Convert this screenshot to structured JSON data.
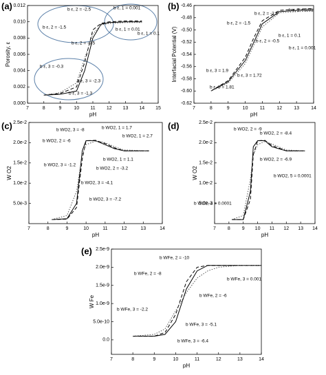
{
  "chart_data": [
    {
      "type": "line",
      "panel": "(a)",
      "xlabel": "pH",
      "ylabel": "Porosity, ε",
      "xlim": [
        7,
        15
      ],
      "xticks": [
        7,
        8,
        9,
        10,
        11,
        12,
        13,
        14,
        15
      ],
      "ylim": [
        0,
        0.012
      ],
      "yticks": [
        {
          "value": 0,
          "label": "0.000"
        },
        0.002,
        0.004,
        0.006,
        0.008,
        {
          "value": 0.01,
          "label": "0.010"
        },
        0.012
      ],
      "series": [
        {
          "style": "solid",
          "color": "#000000",
          "x": [
            8,
            9,
            10,
            10.5,
            11,
            11.5,
            12,
            13,
            14
          ],
          "values": [
            0.001,
            0.0011,
            0.0015,
            0.004,
            0.008,
            0.0097,
            0.0099,
            0.01,
            0.01
          ]
        },
        {
          "style": "dashed",
          "color": "#000000",
          "x": [
            8,
            9,
            10,
            10.5,
            11,
            11.5,
            12,
            13,
            14
          ],
          "values": [
            0.001,
            0.0012,
            0.002,
            0.005,
            0.009,
            0.0098,
            0.01,
            0.0101,
            0.0101
          ]
        },
        {
          "style": "dotted",
          "color": "#555555",
          "x": [
            8,
            9,
            10,
            10.5,
            11,
            11.5,
            12,
            13,
            14
          ],
          "values": [
            0.001,
            0.0013,
            0.0025,
            0.0055,
            0.0085,
            0.0096,
            0.0098,
            0.0099,
            0.0099
          ]
        }
      ],
      "annotations": [
        "b ε, 2 = -2.5",
        "b ε, 1 = 0.001",
        "b ε, 2 = -1.5",
        "b ε, 1 = 0.01",
        "b ε, 1 = 0.1",
        "b ε, 2 = -0.5",
        "b ε, 3 = -0.3",
        "b ε, 3 = -2.3",
        "b ε, 3 = -1.3"
      ]
    },
    {
      "type": "line",
      "panel": "(b)",
      "xlabel": "pH",
      "ylabel": "Interfacial Potential (V)",
      "xlim": [
        7,
        14
      ],
      "xticks": [
        7,
        8,
        9,
        10,
        11,
        12,
        13,
        14
      ],
      "ylim": [
        -0.62,
        -0.46
      ],
      "yticks": [
        -0.62,
        {
          "value": -0.6,
          "label": "-0.60"
        },
        -0.58,
        -0.56,
        -0.54,
        -0.52,
        {
          "value": -0.5,
          "label": "-0.50"
        },
        -0.48,
        -0.46
      ],
      "series": [
        {
          "style": "solid",
          "color": "#000000",
          "x": [
            8,
            9,
            10,
            10.5,
            11,
            12,
            13,
            14
          ],
          "values": [
            -0.6,
            -0.585,
            -0.55,
            -0.52,
            -0.49,
            -0.47,
            -0.468,
            -0.467
          ]
        },
        {
          "style": "dashed",
          "color": "#000000",
          "x": [
            8,
            9,
            10,
            10.5,
            11,
            12,
            13,
            14
          ],
          "values": [
            -0.6,
            -0.583,
            -0.545,
            -0.513,
            -0.485,
            -0.468,
            -0.466,
            -0.465
          ]
        },
        {
          "style": "dotted",
          "color": "#555555",
          "x": [
            8,
            9,
            10,
            10.5,
            11,
            12,
            13,
            14
          ],
          "values": [
            -0.6,
            -0.587,
            -0.555,
            -0.525,
            -0.495,
            -0.472,
            -0.47,
            -0.469
          ]
        }
      ],
      "annotations": [
        "b ε, 2 = -2.5",
        "b ε, 1 = 0.01",
        "b ε, 2 = -1.5",
        "b ε, 1 = 0.1",
        "b ε, 2 = -0.5",
        "b ε, 1 = 0.001",
        "b ε, 3 = 1.9",
        "b ε, 3 = 1.72",
        "b ε, 3 = 1.81"
      ]
    },
    {
      "type": "line",
      "panel": "(c)",
      "xlabel": "pH",
      "ylabel": "W O2",
      "xlim": [
        7,
        14
      ],
      "xticks": [
        7,
        8,
        9,
        10,
        11,
        12,
        13,
        14
      ],
      "ylim": [
        0,
        0.025
      ],
      "yticks": [
        {
          "value": 0.005,
          "label": "5.0e-3"
        },
        {
          "value": 0.01,
          "label": "1.0e-2"
        },
        {
          "value": 0.015,
          "label": "1.5e-2"
        },
        {
          "value": 0.02,
          "label": "2.0e-2"
        },
        {
          "value": 0.025,
          "label": "2.5e-2"
        }
      ],
      "series": [
        {
          "style": "solid",
          "color": "#000000",
          "x": [
            8.2,
            9,
            9.5,
            9.8,
            10,
            10.5,
            11,
            11.5,
            12,
            13.3
          ],
          "values": [
            0.001,
            0.0012,
            0.005,
            0.018,
            0.0205,
            0.0205,
            0.0195,
            0.0185,
            0.018,
            0.018
          ]
        },
        {
          "style": "dashed",
          "color": "#000000",
          "x": [
            8.2,
            9,
            9.5,
            9.8,
            10,
            10.5,
            11,
            11.5,
            12,
            13.3
          ],
          "values": [
            0.001,
            0.0011,
            0.004,
            0.016,
            0.0205,
            0.0206,
            0.0198,
            0.0187,
            0.018,
            0.018
          ]
        },
        {
          "style": "dotted",
          "color": "#555555",
          "x": [
            8.2,
            9,
            9.5,
            9.8,
            10,
            10.5,
            11,
            11.5,
            12,
            13.3
          ],
          "values": [
            0.001,
            0.002,
            0.008,
            0.017,
            0.0195,
            0.0204,
            0.02,
            0.019,
            0.0182,
            0.018
          ]
        }
      ],
      "annotations": [
        "b WO2, 3 = -8",
        "b WO2, 1 = 1.7",
        "b WO2, 1 = 2.7",
        "b WO2, 2 = -6",
        "b WO2, 1 = 1.1",
        "b WO2, 2 = -3.2",
        "b WO2, 3 = -1.2",
        "b WO2, 3 = -4.1",
        "b WO2, 3 = -7.2"
      ]
    },
    {
      "type": "line",
      "panel": "(d)",
      "xlabel": "pH",
      "ylabel": "W O2",
      "xlim": [
        7,
        14
      ],
      "xticks": [
        7,
        8,
        9,
        10,
        11,
        12,
        13,
        14
      ],
      "ylim": [
        0,
        0.025
      ],
      "yticks": [
        {
          "value": 0.005,
          "label": "5.0e-3"
        },
        {
          "value": 0.01,
          "label": "1.0e-2"
        },
        {
          "value": 0.015,
          "label": "1.5e-2"
        },
        {
          "value": 0.02,
          "label": "2.0e-2"
        },
        {
          "value": 0.025,
          "label": "2.5e-2"
        }
      ],
      "series": [
        {
          "style": "solid",
          "color": "#000000",
          "x": [
            8.2,
            9,
            9.5,
            9.7,
            10,
            10.5,
            11,
            12,
            13.3
          ],
          "values": [
            0.001,
            0.001,
            0.008,
            0.019,
            0.0205,
            0.0205,
            0.019,
            0.018,
            0.018
          ]
        },
        {
          "style": "dashed",
          "color": "#000000",
          "x": [
            8.2,
            9,
            9.5,
            9.7,
            10,
            10.5,
            11,
            12,
            13.3
          ],
          "values": [
            0.001,
            0.001,
            0.006,
            0.017,
            0.0205,
            0.0206,
            0.0193,
            0.018,
            0.018
          ]
        },
        {
          "style": "dotted",
          "color": "#555555",
          "x": [
            8.2,
            9,
            9.5,
            9.7,
            10,
            10.5,
            11,
            12,
            13.3
          ],
          "values": [
            0.001,
            0.002,
            0.011,
            0.017,
            0.0195,
            0.0203,
            0.0197,
            0.0182,
            0.018
          ]
        }
      ],
      "annotations": [
        "b WO2, 2 = -9",
        "b WO2, 2 = -8.4",
        "b WO2, 2 = -6.9",
        "b WO2, 5 = 0.0001",
        "b WO2, 4 = 0.0001"
      ]
    },
    {
      "type": "line",
      "panel": "(e)",
      "xlabel": "pH",
      "ylabel": "W Fe",
      "xlim": [
        7,
        14
      ],
      "xticks": [
        7,
        8,
        9,
        10,
        11,
        12,
        13,
        14
      ],
      "ylim": [
        -4e-10,
        2.5e-09
      ],
      "yticks": [
        {
          "value": 0,
          "label": "0.0"
        },
        {
          "value": 5e-10,
          "label": "5.0e-10"
        },
        {
          "value": 1e-09,
          "label": "1.0e-9"
        },
        {
          "value": 1.5e-09,
          "label": "1.5e-9"
        },
        {
          "value": 2e-09,
          "label": "2.0e-9"
        },
        {
          "value": 2.5e-09,
          "label": "2.5e-9"
        }
      ],
      "series": [
        {
          "style": "solid",
          "color": "#000000",
          "x": [
            8,
            9,
            9.5,
            10,
            10.5,
            11,
            11.5,
            12,
            13,
            14
          ],
          "values": [
            1e-10,
            1e-10,
            1.5e-10,
            5e-10,
            1.4e-09,
            1.9e-09,
            2.05e-09,
            2.05e-09,
            2.05e-09,
            2.05e-09
          ]
        },
        {
          "style": "dashed",
          "color": "#000000",
          "x": [
            8,
            9,
            9.5,
            10,
            10.5,
            11,
            11.5,
            12,
            13,
            14
          ],
          "values": [
            1e-10,
            1e-10,
            2e-10,
            7e-10,
            1.6e-09,
            2e-09,
            2.05e-09,
            2.05e-09,
            2.05e-09,
            2.05e-09
          ]
        },
        {
          "style": "dotted",
          "color": "#555555",
          "x": [
            8,
            9,
            9.5,
            10,
            10.5,
            11,
            11.5,
            12,
            13,
            14
          ],
          "values": [
            1e-10,
            1.5e-10,
            3e-10,
            8e-10,
            1.3e-09,
            1.7e-09,
            1.9e-09,
            2e-09,
            2.05e-09,
            2.05e-09
          ]
        }
      ],
      "annotations": [
        "b WFe, 2 = -10",
        "b WFe, 2 = -8",
        "b WFe, 3 = 0.001",
        "b WFe, 2 = -6",
        "b WFe, 3 = -2.2",
        "b WFe, 3 = -5.1",
        "b WFe, 3 = -6.4"
      ]
    }
  ]
}
